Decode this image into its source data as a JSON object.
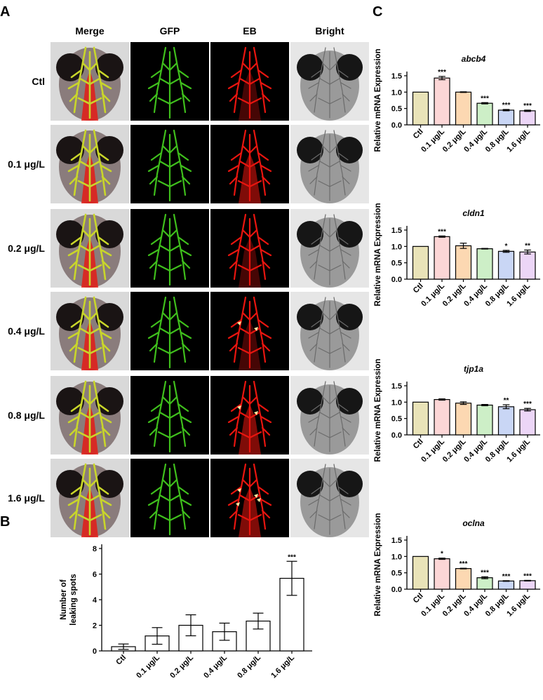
{
  "panels": {
    "a": "A",
    "b": "B",
    "c": "C"
  },
  "panel_a": {
    "columns": [
      "Merge",
      "GFP",
      "EB",
      "Bright"
    ],
    "rows": [
      "Ctl",
      "0.1 μg/L",
      "0.2 μg/L",
      "0.4 μg/L",
      "0.8 μg/L",
      "1.6 μg/L"
    ],
    "arrowheads_per_row": [
      0,
      0,
      0,
      2,
      2,
      4
    ],
    "colors": {
      "gfp": "#3fbf1c",
      "eb": "#e8150f",
      "merge": "#c9d62a",
      "bright": "#9a9a9a",
      "arrow": "#ffe9a0"
    }
  },
  "chart_data": [
    {
      "id": "leaking",
      "type": "bar",
      "title": "",
      "ylabel": "Number of leaking spots",
      "ylabel_lines": [
        "Number of",
        "leaking spots"
      ],
      "categories": [
        "Ctl",
        "0.1 μg/L",
        "0.2 μg/L",
        "0.4 μg/L",
        "0.8 μg/L",
        "1.6 μg/L"
      ],
      "values": [
        0.33,
        1.17,
        2.0,
        1.5,
        2.33,
        5.67
      ],
      "errors": [
        0.21,
        0.65,
        0.82,
        0.67,
        0.62,
        1.33
      ],
      "significance": [
        "",
        "",
        "",
        "",
        "",
        "***"
      ],
      "ylim": [
        0,
        8
      ],
      "yticks": [
        0,
        2,
        4,
        6,
        8
      ],
      "bar_colors": [
        "#ffffff",
        "#ffffff",
        "#ffffff",
        "#ffffff",
        "#ffffff",
        "#ffffff"
      ]
    },
    {
      "id": "abcb4",
      "type": "bar",
      "title": "abcb4",
      "ylabel": "Relative mRNA Expression",
      "categories": [
        "Ctl",
        "0.1 μg/L",
        "0.2 μg/L",
        "0.4 μg/L",
        "0.8 μg/L",
        "1.6 μg/L"
      ],
      "values": [
        1.0,
        1.43,
        1.0,
        0.66,
        0.45,
        0.43
      ],
      "errors": [
        0.0,
        0.05,
        0.01,
        0.02,
        0.02,
        0.02
      ],
      "significance": [
        "",
        "***",
        "",
        "***",
        "***",
        "***"
      ],
      "ylim": [
        0,
        1.5
      ],
      "yticks": [
        0,
        0.5,
        1.0,
        1.5
      ],
      "bar_colors": [
        "#e9e3b8",
        "#fcd6d6",
        "#fcd8b2",
        "#cdefc7",
        "#c9d6f5",
        "#ecd6f7"
      ]
    },
    {
      "id": "cldn1",
      "type": "bar",
      "title": "cldn1",
      "ylabel": "Relative mRNA Expression",
      "categories": [
        "Ctl",
        "0.1 μg/L",
        "0.2 μg/L",
        "0.4 μg/L",
        "0.8 μg/L",
        "1.6 μg/L"
      ],
      "values": [
        1.0,
        1.3,
        1.02,
        0.93,
        0.85,
        0.83
      ],
      "errors": [
        0.0,
        0.02,
        0.08,
        0.01,
        0.03,
        0.06
      ],
      "significance": [
        "",
        "***",
        "",
        "",
        "*",
        "**"
      ],
      "ylim": [
        0,
        1.5
      ],
      "yticks": [
        0,
        0.5,
        1.0,
        1.5
      ],
      "bar_colors": [
        "#e9e3b8",
        "#fcd6d6",
        "#fcd8b2",
        "#cdefc7",
        "#c9d6f5",
        "#ecd6f7"
      ]
    },
    {
      "id": "tjp1a",
      "type": "bar",
      "title": "tjp1a",
      "ylabel": "Relative mRNA Expression",
      "categories": [
        "Ctl",
        "0.1 μg/L",
        "0.2 μg/L",
        "0.4 μg/L",
        "0.8 μg/L",
        "1.6 μg/L"
      ],
      "values": [
        1.0,
        1.08,
        0.97,
        0.91,
        0.86,
        0.77
      ],
      "errors": [
        0.0,
        0.02,
        0.04,
        0.02,
        0.06,
        0.04
      ],
      "significance": [
        "",
        "",
        "",
        "",
        "**",
        "***"
      ],
      "ylim": [
        0,
        1.5
      ],
      "yticks": [
        0,
        0.5,
        1.0,
        1.5
      ],
      "bar_colors": [
        "#e9e3b8",
        "#fcd6d6",
        "#fcd8b2",
        "#cdefc7",
        "#c9d6f5",
        "#ecd6f7"
      ]
    },
    {
      "id": "oclna",
      "type": "bar",
      "title": "oclna",
      "ylabel": "Relative mRNA Expression",
      "categories": [
        "Ctl",
        "0.1 μg/L",
        "0.2 μg/L",
        "0.4 μg/L",
        "0.8 μg/L",
        "1.6 μg/L"
      ],
      "values": [
        1.0,
        0.93,
        0.63,
        0.35,
        0.25,
        0.26
      ],
      "errors": [
        0.0,
        0.02,
        0.01,
        0.03,
        0.01,
        0.01
      ],
      "significance": [
        "",
        "*",
        "***",
        "***",
        "***",
        "***"
      ],
      "ylim": [
        0,
        1.5
      ],
      "yticks": [
        0,
        0.5,
        1.0,
        1.5
      ],
      "bar_colors": [
        "#e9e3b8",
        "#fcd6d6",
        "#fcd8b2",
        "#cdefc7",
        "#c9d6f5",
        "#ecd6f7"
      ]
    }
  ]
}
